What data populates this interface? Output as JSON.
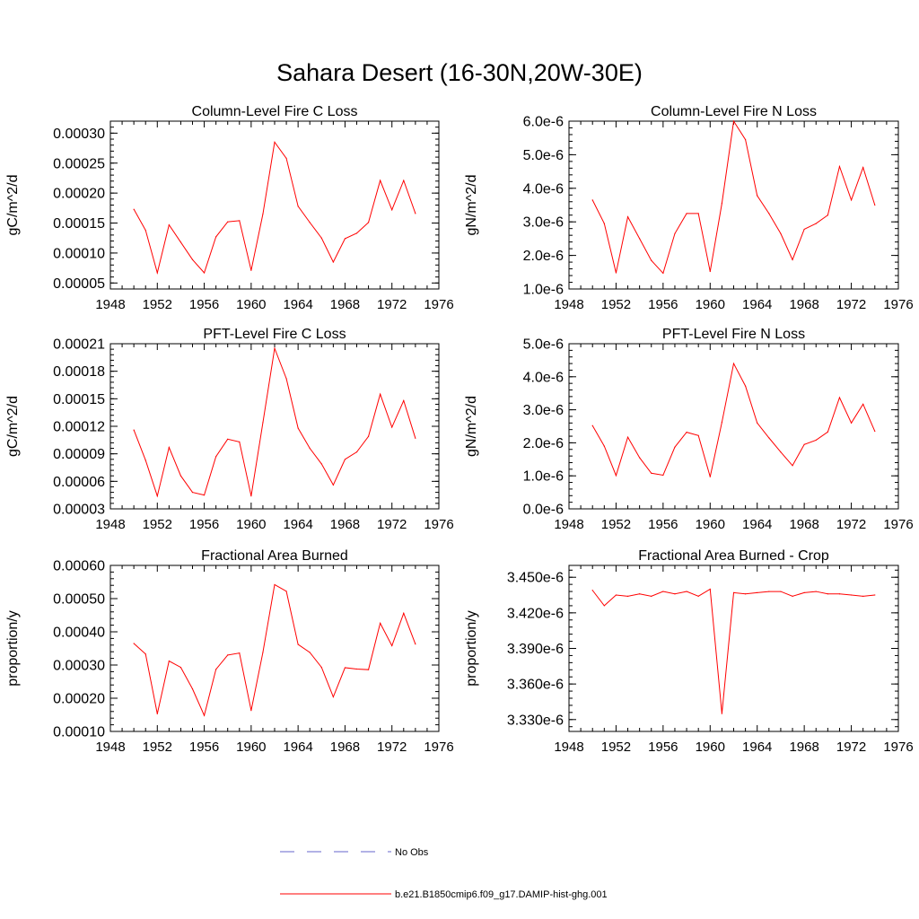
{
  "figure": {
    "title": "Sahara Desert (16-30N,20W-30E)",
    "line_color": "#ff0000",
    "obs_color": "#6666cc"
  },
  "legend": {
    "no_obs_label": "No Obs",
    "model_label": "b.e21.B1850cmip6.f09_g17.DAMIP-hist-ghg.001"
  },
  "chart_data": [
    {
      "type": "line",
      "title": "Column-Level Fire C Loss",
      "ylabel": "gC/m^2/d",
      "xlim": [
        1948,
        1976
      ],
      "ylim": [
        4e-05,
        0.00032
      ],
      "xticks": [
        "1948",
        "1952",
        "1956",
        "1960",
        "1964",
        "1968",
        "1972",
        "1976"
      ],
      "yticks": [
        {
          "v": 5e-05,
          "label": "0.00005"
        },
        {
          "v": 0.0001,
          "label": "0.00010"
        },
        {
          "v": 0.00015,
          "label": "0.00015"
        },
        {
          "v": 0.0002,
          "label": "0.00020"
        },
        {
          "v": 0.00025,
          "label": "0.00025"
        },
        {
          "v": 0.0003,
          "label": "0.00030"
        }
      ],
      "x": [
        1950,
        1951,
        1952,
        1953,
        1954,
        1955,
        1956,
        1957,
        1958,
        1959,
        1960,
        1961,
        1962,
        1963,
        1964,
        1965,
        1966,
        1967,
        1968,
        1969,
        1970,
        1971,
        1972,
        1973,
        1974
      ],
      "values": [
        0.000173,
        0.000138,
        6.7e-05,
        0.000147,
        0.000118,
        8.9e-05,
        6.7e-05,
        0.000127,
        0.000152,
        0.000154,
        7.1e-05,
        0.000165,
        0.000285,
        0.000258,
        0.000178,
        0.000151,
        0.000125,
        8.5e-05,
        0.000124,
        0.000133,
        0.000151,
        0.000221,
        0.000172,
        0.000221,
        0.000166
      ]
    },
    {
      "type": "line",
      "title": "Column-Level Fire N Loss",
      "ylabel": "gN/m^2/d",
      "xlim": [
        1948,
        1976
      ],
      "ylim": [
        1e-06,
        6e-06
      ],
      "xticks": [
        "1948",
        "1952",
        "1956",
        "1960",
        "1964",
        "1968",
        "1972",
        "1976"
      ],
      "yticks": [
        {
          "v": 1e-06,
          "label": "1.0e-6"
        },
        {
          "v": 2e-06,
          "label": "2.0e-6"
        },
        {
          "v": 3e-06,
          "label": "3.0e-6"
        },
        {
          "v": 4e-06,
          "label": "4.0e-6"
        },
        {
          "v": 5e-06,
          "label": "5.0e-6"
        },
        {
          "v": 6e-06,
          "label": "6.0e-6"
        }
      ],
      "x": [
        1950,
        1951,
        1952,
        1953,
        1954,
        1955,
        1956,
        1957,
        1958,
        1959,
        1960,
        1961,
        1962,
        1963,
        1964,
        1965,
        1966,
        1967,
        1968,
        1969,
        1970,
        1971,
        1972,
        1973,
        1974
      ],
      "values": [
        3.65e-06,
        2.95e-06,
        1.48e-06,
        3.15e-06,
        2.5e-06,
        1.85e-06,
        1.47e-06,
        2.65e-06,
        3.25e-06,
        3.25e-06,
        1.52e-06,
        3.55e-06,
        6e-06,
        5.45e-06,
        3.78e-06,
        3.25e-06,
        2.65e-06,
        1.87e-06,
        2.78e-06,
        2.95e-06,
        3.2e-06,
        4.65e-06,
        3.65e-06,
        4.62e-06,
        3.5e-06
      ]
    },
    {
      "type": "line",
      "title": "PFT-Level Fire C Loss",
      "ylabel": "gC/m^2/d",
      "xlim": [
        1948,
        1976
      ],
      "ylim": [
        3e-05,
        0.00021
      ],
      "xticks": [
        "1948",
        "1952",
        "1956",
        "1960",
        "1964",
        "1968",
        "1972",
        "1976"
      ],
      "yticks": [
        {
          "v": 3e-05,
          "label": "0.00003"
        },
        {
          "v": 6e-05,
          "label": "0.00006"
        },
        {
          "v": 9e-05,
          "label": "0.00009"
        },
        {
          "v": 0.00012,
          "label": "0.00012"
        },
        {
          "v": 0.00015,
          "label": "0.00015"
        },
        {
          "v": 0.00018,
          "label": "0.00018"
        },
        {
          "v": 0.00021,
          "label": "0.00021"
        }
      ],
      "x": [
        1950,
        1951,
        1952,
        1953,
        1954,
        1955,
        1956,
        1957,
        1958,
        1959,
        1960,
        1961,
        1962,
        1963,
        1964,
        1965,
        1966,
        1967,
        1968,
        1969,
        1970,
        1971,
        1972,
        1973,
        1974
      ],
      "values": [
        0.000116,
        8.3e-05,
        4.4e-05,
        9.7e-05,
        6.6e-05,
        4.8e-05,
        4.5e-05,
        8.7e-05,
        0.000106,
        0.000103,
        4.4e-05,
        0.000124,
        0.000205,
        0.000172,
        0.000118,
        9.6e-05,
        7.9e-05,
        5.6e-05,
        8.4e-05,
        9.2e-05,
        0.000109,
        0.000155,
        0.000119,
        0.000148,
        0.000107
      ]
    },
    {
      "type": "line",
      "title": "PFT-Level Fire N Loss",
      "ylabel": "gN/m^2/d",
      "xlim": [
        1948,
        1976
      ],
      "ylim": [
        0.0,
        5e-06
      ],
      "xticks": [
        "1948",
        "1952",
        "1956",
        "1960",
        "1964",
        "1968",
        "1972",
        "1976"
      ],
      "yticks": [
        {
          "v": 0.0,
          "label": "0.0e-6"
        },
        {
          "v": 1e-06,
          "label": "1.0e-6"
        },
        {
          "v": 2e-06,
          "label": "2.0e-6"
        },
        {
          "v": 3e-06,
          "label": "3.0e-6"
        },
        {
          "v": 4e-06,
          "label": "4.0e-6"
        },
        {
          "v": 5e-06,
          "label": "5.0e-6"
        }
      ],
      "x": [
        1950,
        1951,
        1952,
        1953,
        1954,
        1955,
        1956,
        1957,
        1958,
        1959,
        1960,
        1961,
        1962,
        1963,
        1964,
        1965,
        1966,
        1967,
        1968,
        1969,
        1970,
        1971,
        1972,
        1973,
        1974
      ],
      "values": [
        2.52e-06,
        1.9e-06,
        1.01e-06,
        2.17e-06,
        1.55e-06,
        1.08e-06,
        1.02e-06,
        1.87e-06,
        2.32e-06,
        2.22e-06,
        9.7e-07,
        2.62e-06,
        4.4e-06,
        3.72e-06,
        2.6e-06,
        2.15e-06,
        1.72e-06,
        1.31e-06,
        1.95e-06,
        2.08e-06,
        2.33e-06,
        3.37e-06,
        2.6e-06,
        3.17e-06,
        2.35e-06
      ]
    },
    {
      "type": "line",
      "title": "Fractional Area Burned",
      "ylabel": "proportion/y",
      "xlim": [
        1948,
        1976
      ],
      "ylim": [
        0.0001,
        0.0006
      ],
      "xticks": [
        "1948",
        "1952",
        "1956",
        "1960",
        "1964",
        "1968",
        "1972",
        "1976"
      ],
      "yticks": [
        {
          "v": 0.0001,
          "label": "0.00010"
        },
        {
          "v": 0.0002,
          "label": "0.00020"
        },
        {
          "v": 0.0003,
          "label": "0.00030"
        },
        {
          "v": 0.0004,
          "label": "0.00040"
        },
        {
          "v": 0.0005,
          "label": "0.00050"
        },
        {
          "v": 0.0006,
          "label": "0.00060"
        }
      ],
      "x": [
        1950,
        1951,
        1952,
        1953,
        1954,
        1955,
        1956,
        1957,
        1958,
        1959,
        1960,
        1961,
        1962,
        1963,
        1964,
        1965,
        1966,
        1967,
        1968,
        1969,
        1970,
        1971,
        1972,
        1973,
        1974
      ],
      "values": [
        0.000365,
        0.000333,
        0.000153,
        0.000312,
        0.000293,
        0.000228,
        0.000148,
        0.000287,
        0.00033,
        0.000336,
        0.000163,
        0.000338,
        0.000542,
        0.000522,
        0.000362,
        0.000338,
        0.000293,
        0.000204,
        0.000292,
        0.000288,
        0.000286,
        0.000426,
        0.000358,
        0.000456,
        0.000363
      ]
    },
    {
      "type": "line",
      "title": "Fractional Area Burned - Crop",
      "ylabel": "proportion/y",
      "xlim": [
        1948,
        1976
      ],
      "ylim": [
        3.32e-06,
        3.46e-06
      ],
      "xticks": [
        "1948",
        "1952",
        "1956",
        "1960",
        "1964",
        "1968",
        "1972",
        "1976"
      ],
      "yticks": [
        {
          "v": 3.33e-06,
          "label": "3.330e-6"
        },
        {
          "v": 3.36e-06,
          "label": "3.360e-6"
        },
        {
          "v": 3.39e-06,
          "label": "3.390e-6"
        },
        {
          "v": 3.42e-06,
          "label": "3.420e-6"
        },
        {
          "v": 3.45e-06,
          "label": "3.450e-6"
        }
      ],
      "x": [
        1950,
        1951,
        1952,
        1953,
        1954,
        1955,
        1956,
        1957,
        1958,
        1959,
        1960,
        1961,
        1962,
        1963,
        1964,
        1965,
        1966,
        1967,
        1968,
        1969,
        1970,
        1971,
        1972,
        1973,
        1974
      ],
      "values": [
        3.439e-06,
        3.426e-06,
        3.435e-06,
        3.434e-06,
        3.436e-06,
        3.434e-06,
        3.438e-06,
        3.436e-06,
        3.438e-06,
        3.434e-06,
        3.44e-06,
        3.335e-06,
        3.437e-06,
        3.436e-06,
        3.437e-06,
        3.438e-06,
        3.438e-06,
        3.434e-06,
        3.437e-06,
        3.438e-06,
        3.436e-06,
        3.436e-06,
        3.435e-06,
        3.434e-06,
        3.435e-06
      ]
    }
  ]
}
